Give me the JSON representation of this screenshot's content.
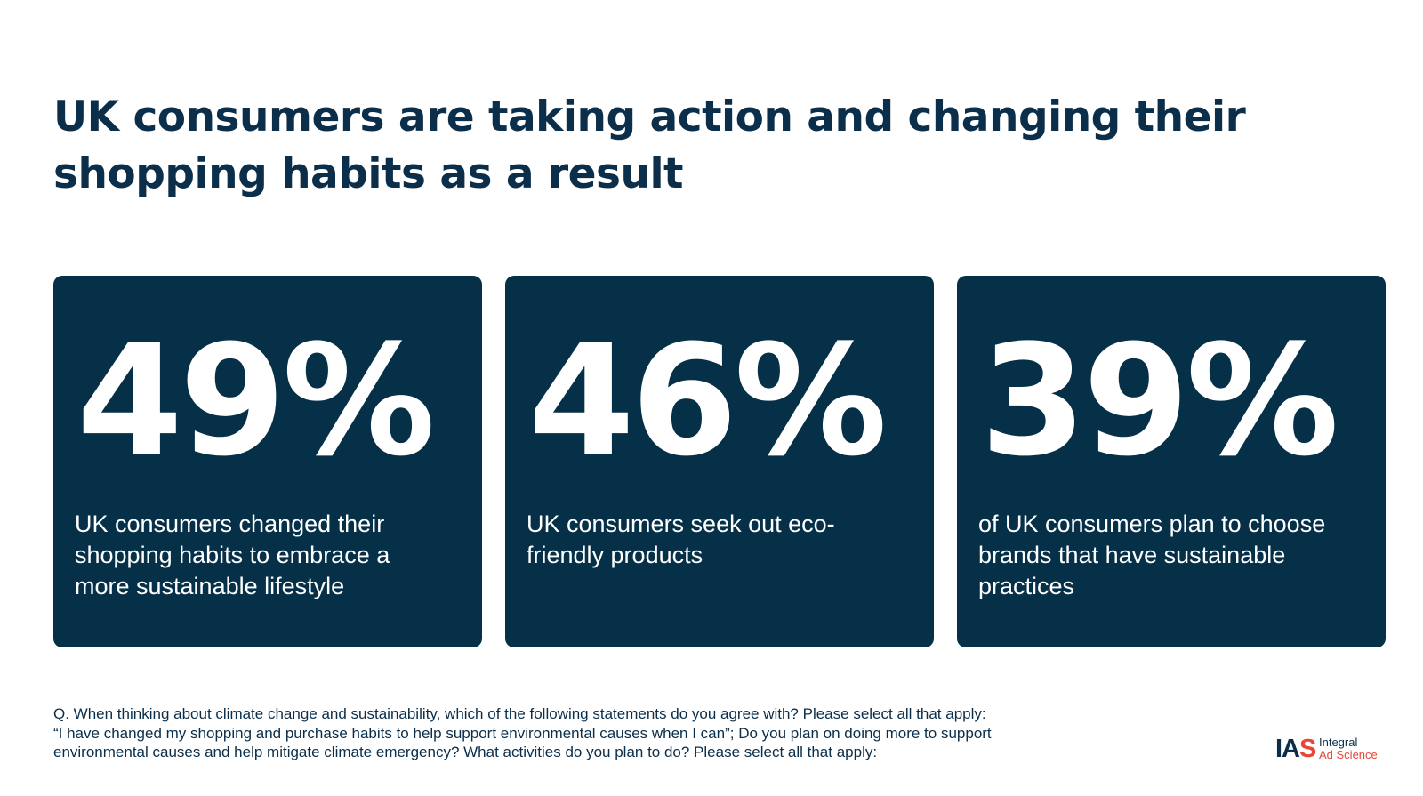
{
  "headline": "UK consumers are taking action and changing their shopping habits as a result",
  "stats": [
    {
      "value": "49%",
      "description": "UK consumers changed their shopping habits to embrace a more sustainable lifestyle"
    },
    {
      "value": "46%",
      "description": "UK consumers seek out eco-friendly products"
    },
    {
      "value": "39%",
      "description": "of UK consumers plan to choose brands that have sustainable practices"
    }
  ],
  "footnote": {
    "line1": "Q. When thinking about climate change and sustainability, which of the following statements do you agree with? Please select all that apply:",
    "line2": "“I have changed my shopping and purchase habits to help support environmental causes when I can”; Do you plan on doing more to support",
    "line3": "environmental causes and help mitigate climate emergency? What activities do you plan to do? Please select all that apply:"
  },
  "logo": {
    "mark_prefix": "IA",
    "mark_suffix": "S",
    "line1": "Integral",
    "line2": "Ad Science"
  },
  "colors": {
    "navy": "#053048",
    "text_dark": "#0b2e4a",
    "brand_red": "#e8463a",
    "background": "#ffffff"
  }
}
